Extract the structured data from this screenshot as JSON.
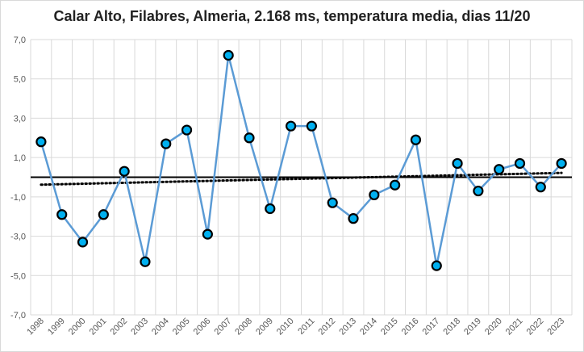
{
  "chart_data": {
    "type": "line",
    "title": "Calar Alto, Filabres, Almeria, 2.168 ms, temperatura media, dias 11/20",
    "xlabel": "",
    "ylabel": "",
    "categories": [
      "1998",
      "1999",
      "2000",
      "2001",
      "2002",
      "2003",
      "2004",
      "2005",
      "2006",
      "2007",
      "2008",
      "2009",
      "2010",
      "2011",
      "2012",
      "2013",
      "2014",
      "2015",
      "2016",
      "2017",
      "2018",
      "2019",
      "2020",
      "2021",
      "2022",
      "2023"
    ],
    "series": [
      {
        "values": [
          1.8,
          -1.9,
          -3.3,
          -1.9,
          0.3,
          -4.3,
          1.7,
          2.4,
          -2.9,
          6.2,
          2.0,
          -1.6,
          2.6,
          2.6,
          -1.3,
          -2.1,
          -0.9,
          -0.4,
          1.9,
          -4.5,
          0.7,
          -0.7,
          0.4,
          0.7,
          -0.5,
          0.7
        ],
        "color": "#5b9bd5",
        "marker_fill": "#00b0f0",
        "marker_edge": "#000000"
      }
    ],
    "trendline": {
      "style": "dotted",
      "color": "#000000",
      "start": -0.38,
      "end": 0.22
    },
    "reference_line": {
      "y": 0,
      "color": "#000000"
    },
    "ylim": [
      -7,
      7
    ],
    "yticks": [
      "7,0",
      "5,0",
      "3,0",
      "1,0",
      "-1,0",
      "-3,0",
      "-5,0",
      "-7,0"
    ],
    "ytick_values": [
      7,
      5,
      3,
      1,
      -1,
      -3,
      -5,
      -7
    ],
    "grid": true,
    "legend": "none"
  }
}
